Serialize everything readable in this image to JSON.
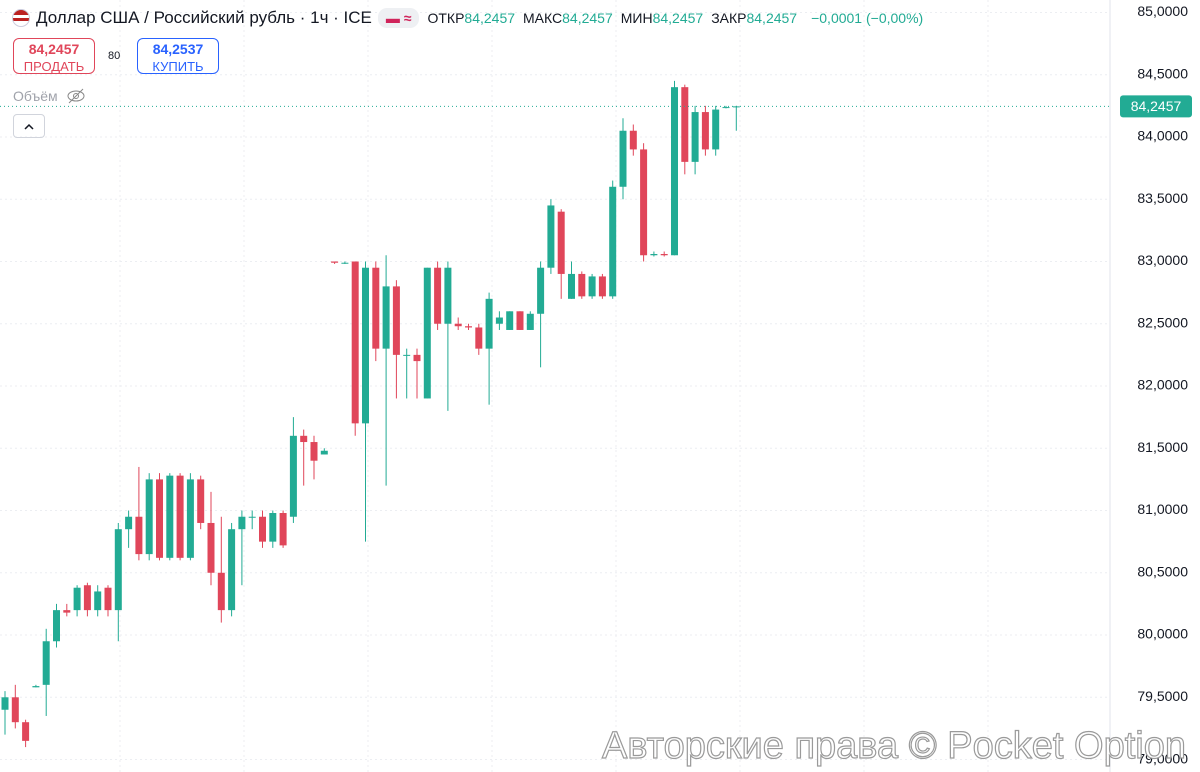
{
  "chart_data": {
    "type": "candlestick",
    "title": "Доллар США / Российский рубль · 1ч · ICE",
    "legend": [
      {
        "label": "ОТКР",
        "value": "84,2457"
      },
      {
        "label": "МАКС",
        "value": "84,2457"
      },
      {
        "label": "МИН",
        "value": "84,2457"
      },
      {
        "label": "ЗАКР",
        "value": "84,2457"
      }
    ],
    "change": "−0,0001 (−0,00%)",
    "sell": {
      "price": "84,2457",
      "label": "ПРОДАТЬ"
    },
    "spread": "80",
    "buy": {
      "price": "84,2537",
      "label": "КУПИТЬ"
    },
    "volume_label": "Объём",
    "last_price": {
      "value": 84.2457,
      "label": "84,2457"
    },
    "watermark": "Авторские права © Pocket Option",
    "up_color": "#22ab94",
    "down_color": "#e0465a",
    "grid": true,
    "ylim": [
      78.9,
      85.1
    ],
    "yticks": [
      {
        "value": 79,
        "label": "79,0000"
      },
      {
        "value": 79.5,
        "label": "79,5000"
      },
      {
        "value": 80,
        "label": "80,0000"
      },
      {
        "value": 80.5,
        "label": "80,5000"
      },
      {
        "value": 81,
        "label": "81,0000"
      },
      {
        "value": 81.5,
        "label": "81,5000"
      },
      {
        "value": 82,
        "label": "82,0000"
      },
      {
        "value": 82.5,
        "label": "82,5000"
      },
      {
        "value": 83,
        "label": "83,0000"
      },
      {
        "value": 83.5,
        "label": "83,5000"
      },
      {
        "value": 84,
        "label": "84,0000"
      },
      {
        "value": 84.5,
        "label": "84,5000"
      },
      {
        "value": 85,
        "label": "85,0000"
      }
    ],
    "open": [
      79.4,
      79.5,
      79.3,
      79.58,
      79.6,
      79.95,
      80.2,
      80.2,
      80.4,
      80.2,
      80.38,
      80.2,
      80.85,
      80.95,
      80.65,
      81.25,
      80.62,
      81.28,
      80.62,
      81.25,
      80.9,
      80.5,
      80.2,
      80.85,
      80.95,
      80.95,
      80.75,
      80.98,
      80.95,
      81.6,
      81.55,
      81.45,
      83.0,
      82.99,
      83.0,
      81.7,
      82.95,
      82.3,
      82.8,
      82.25,
      82.25,
      81.9,
      82.95,
      82.5,
      82.5,
      82.48,
      82.47,
      82.3,
      82.5,
      82.45,
      82.6,
      82.45,
      82.58,
      82.95,
      83.4,
      82.7,
      82.9,
      82.72,
      82.88,
      82.72,
      83.6,
      84.05,
      83.9,
      83.05,
      83.06,
      83.05,
      84.4,
      83.8,
      84.2,
      83.9,
      84.24,
      84.24
    ],
    "high": [
      79.55,
      79.6,
      79.32,
      79.6,
      80.05,
      80.25,
      80.25,
      80.4,
      80.42,
      80.4,
      80.4,
      80.9,
      81.0,
      81.35,
      81.3,
      81.3,
      81.3,
      81.3,
      81.3,
      81.28,
      81.15,
      80.95,
      80.9,
      81.0,
      81.0,
      81.0,
      81.0,
      81.0,
      81.75,
      81.65,
      81.6,
      81.5,
      83.0,
      83.0,
      83.0,
      83.0,
      83.0,
      83.05,
      82.85,
      82.3,
      82.3,
      82.95,
      83.0,
      83.0,
      82.55,
      82.5,
      82.5,
      82.75,
      82.6,
      82.6,
      82.6,
      82.6,
      83.0,
      83.5,
      83.42,
      83.0,
      82.92,
      82.9,
      82.9,
      83.65,
      84.15,
      84.1,
      83.95,
      83.08,
      83.08,
      84.45,
      84.42,
      84.25,
      84.25,
      84.25,
      84.25,
      84.25
    ],
    "low": [
      79.2,
      79.25,
      79.1,
      79.58,
      79.35,
      79.9,
      80.15,
      80.15,
      80.15,
      80.15,
      80.15,
      79.95,
      80.7,
      80.6,
      80.6,
      80.6,
      80.6,
      80.6,
      80.6,
      80.85,
      80.4,
      80.1,
      80.15,
      80.4,
      80.85,
      80.7,
      80.7,
      80.7,
      80.9,
      81.2,
      81.25,
      81.45,
      82.98,
      82.98,
      81.6,
      80.75,
      82.2,
      81.2,
      81.9,
      81.9,
      81.9,
      81.9,
      82.45,
      81.8,
      82.45,
      82.45,
      82.25,
      81.85,
      82.45,
      82.45,
      82.45,
      82.45,
      82.15,
      82.9,
      82.7,
      82.7,
      82.7,
      82.7,
      82.7,
      82.7,
      83.5,
      83.85,
      83.0,
      83.04,
      83.04,
      83.05,
      83.7,
      83.7,
      83.85,
      83.85,
      84.23,
      84.05
    ],
    "close": [
      79.5,
      79.3,
      79.15,
      79.59,
      79.95,
      80.2,
      80.18,
      80.38,
      80.2,
      80.35,
      80.2,
      80.85,
      80.95,
      80.65,
      81.25,
      80.62,
      81.28,
      80.62,
      81.25,
      80.9,
      80.5,
      80.2,
      80.85,
      80.95,
      80.95,
      80.75,
      80.98,
      80.72,
      81.6,
      81.55,
      81.4,
      81.48,
      82.99,
      82.99,
      81.7,
      82.95,
      82.3,
      82.8,
      82.25,
      82.25,
      82.2,
      82.95,
      82.5,
      82.95,
      82.48,
      82.47,
      82.3,
      82.7,
      82.55,
      82.6,
      82.45,
      82.58,
      82.95,
      83.45,
      82.9,
      82.9,
      82.72,
      82.88,
      82.72,
      83.6,
      84.05,
      83.9,
      83.05,
      83.06,
      83.05,
      84.4,
      83.8,
      84.2,
      83.9,
      84.22,
      84.24,
      84.2457
    ]
  }
}
